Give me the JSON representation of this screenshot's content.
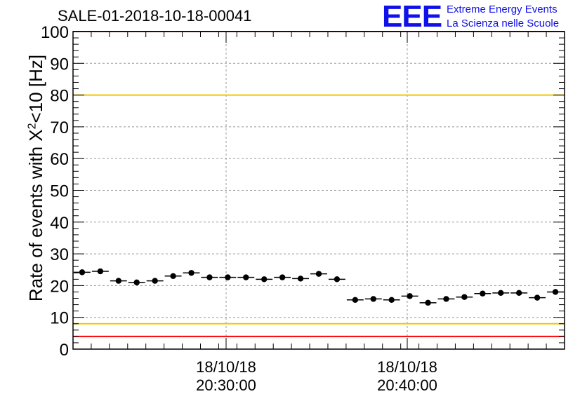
{
  "header": {
    "run_id": "SALE-01-2018-10-18-00041",
    "logo_text": "EEE",
    "logo_line1": "Extreme Energy Events",
    "logo_line2": "La Scienza nelle Scuole"
  },
  "colors": {
    "red_limit": "#ff0000",
    "yellow_limit": "#f0c800",
    "marker": "#000000",
    "grid": "#999999",
    "logo": "#1010e8"
  },
  "chart_data": {
    "type": "scatter",
    "title": "SALE-01-2018-10-18-00041",
    "ylabel_prefix": "Rate of events with X",
    "ylabel_sup": "2",
    "ylabel_suffix": "<10 [Hz]",
    "ylim": [
      0,
      100
    ],
    "y_ticks": [
      "0",
      "10",
      "20",
      "30",
      "40",
      "50",
      "60",
      "70",
      "80",
      "90",
      "100"
    ],
    "x_tick_labels": [
      {
        "date": "18/10/18",
        "time": "20:30:00"
      },
      {
        "date": "18/10/18",
        "time": "20:40:00"
      }
    ],
    "grid": true,
    "reference_lines": [
      {
        "value": 100,
        "color": "red"
      },
      {
        "value": 80,
        "color": "yellow"
      },
      {
        "value": 8,
        "color": "yellow"
      },
      {
        "value": 4,
        "color": "red"
      }
    ],
    "series": [
      {
        "values": [
          24.2,
          24.5,
          21.5,
          21.0,
          21.5,
          23.0,
          24.0,
          22.6,
          22.6,
          22.6,
          22.0,
          22.6,
          22.2,
          23.7,
          22.0,
          15.5,
          15.8,
          15.5,
          16.7,
          14.6,
          15.8,
          16.4,
          17.5,
          17.7,
          17.7,
          16.2,
          18.0
        ]
      }
    ]
  }
}
